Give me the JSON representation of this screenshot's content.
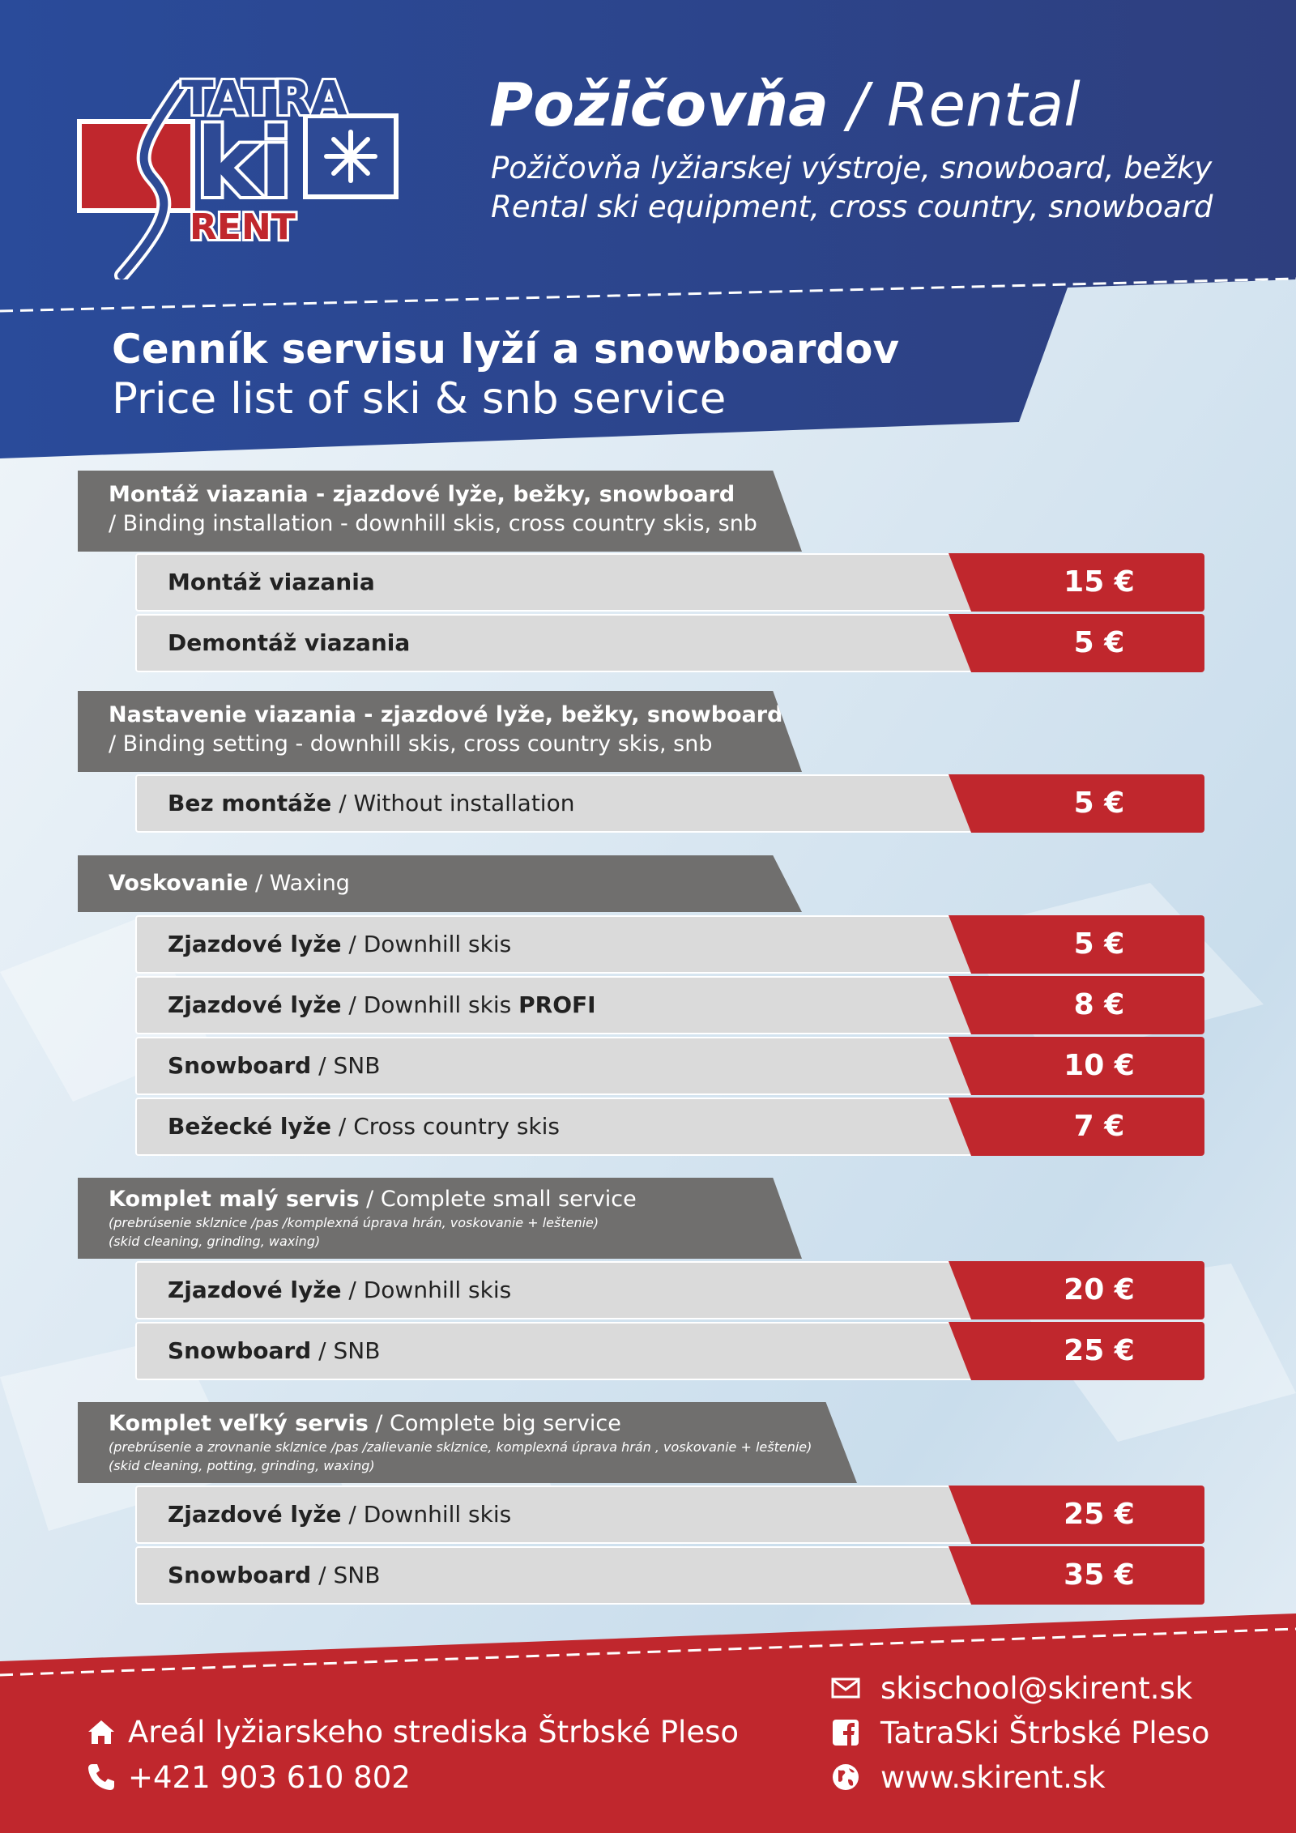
{
  "brand": {
    "logo_top": "TATRA",
    "logo_mid": "ki",
    "logo_bottom": "RENT"
  },
  "header": {
    "title_bold": "Požičovňa",
    "title_rest": " / Rental",
    "subtitle_sk": "Požičovňa lyžiarskej výstroje, snowboard, bežky",
    "subtitle_en": "Rental ski equipment, cross country, snowboard"
  },
  "price_list": {
    "title": "Cenník servisu lyží a snowboardov",
    "subtitle": "Price list of ski & snb service"
  },
  "sections": [
    {
      "title_bold": "Montáž viazania - zjazdové lyže, bežky, snowboard",
      "title_rest": "",
      "line2": "/ Binding installation - downhill skis, cross country skis, snb",
      "rows": [
        {
          "label_bold": "Montáž viazania",
          "label_rest": "",
          "label_extra": "",
          "price": "15 €"
        },
        {
          "label_bold": "Demontáž viazania",
          "label_rest": "",
          "label_extra": "",
          "price": "5 €"
        }
      ]
    },
    {
      "title_bold": "Nastavenie viazania - zjazdové lyže, bežky, snowboard",
      "title_rest": "",
      "line2": "/ Binding setting - downhill skis, cross country skis, snb",
      "rows": [
        {
          "label_bold": "Bez montáže",
          "label_rest": " / Without installation",
          "label_extra": "",
          "price": "5 €"
        }
      ]
    },
    {
      "title_bold": "Voskovanie",
      "title_rest": " / Waxing",
      "rows": [
        {
          "label_bold": "Zjazdové lyže",
          "label_rest": " / Downhill skis",
          "label_extra": "",
          "price": "5 €"
        },
        {
          "label_bold": "Zjazdové lyže",
          "label_rest": " / Downhill skis ",
          "label_extra": "PROFI",
          "price": "8 €"
        },
        {
          "label_bold": "Snowboard",
          "label_rest": " / SNB",
          "label_extra": "",
          "price": "10 €"
        },
        {
          "label_bold": "Bežecké lyže",
          "label_rest": " / Cross country skis",
          "label_extra": "",
          "price": "7 €"
        }
      ]
    },
    {
      "title_bold": "Komplet malý servis",
      "title_rest": " / Complete small service",
      "note1": "(prebrúsenie sklznice /pas /komplexná úprava hrán, voskovanie + leštenie)",
      "note2": "(skid cleaning, grinding, waxing)",
      "rows": [
        {
          "label_bold": "Zjazdové lyže",
          "label_rest": " / Downhill skis",
          "label_extra": "",
          "price": "20 €"
        },
        {
          "label_bold": "Snowboard",
          "label_rest": " / SNB",
          "label_extra": "",
          "price": "25 €"
        }
      ]
    },
    {
      "title_bold": "Komplet veľký servis",
      "title_rest": " / Complete big service",
      "note1": "(prebrúsenie a zrovnanie sklznice /pas /zalievanie sklznice, komplexná úprava hrán , voskovanie + leštenie)",
      "note2": "(skid cleaning, potting, grinding, waxing)",
      "rows": [
        {
          "label_bold": "Zjazdové lyže",
          "label_rest": " / Downhill skis",
          "label_extra": "",
          "price": "25 €"
        },
        {
          "label_bold": "Snowboard",
          "label_rest": " / SNB",
          "label_extra": "",
          "price": "35 €"
        }
      ]
    }
  ],
  "footer": {
    "address": "Areál lyžiarskeho strediska Štrbské Pleso",
    "phone": "+421 903 610 802",
    "email": "skischool@skirent.sk",
    "facebook": "TatraSki Štrbské Pleso",
    "web": "www.skirent.sk"
  },
  "icons": {
    "address": "home-icon",
    "phone": "phone-icon",
    "email": "mail-icon",
    "facebook": "facebook-icon",
    "web": "globe-icon"
  },
  "colors": {
    "navy": "#2e4a95",
    "red": "#c0272d",
    "gray": "#706f6e",
    "row": "#dadada"
  }
}
